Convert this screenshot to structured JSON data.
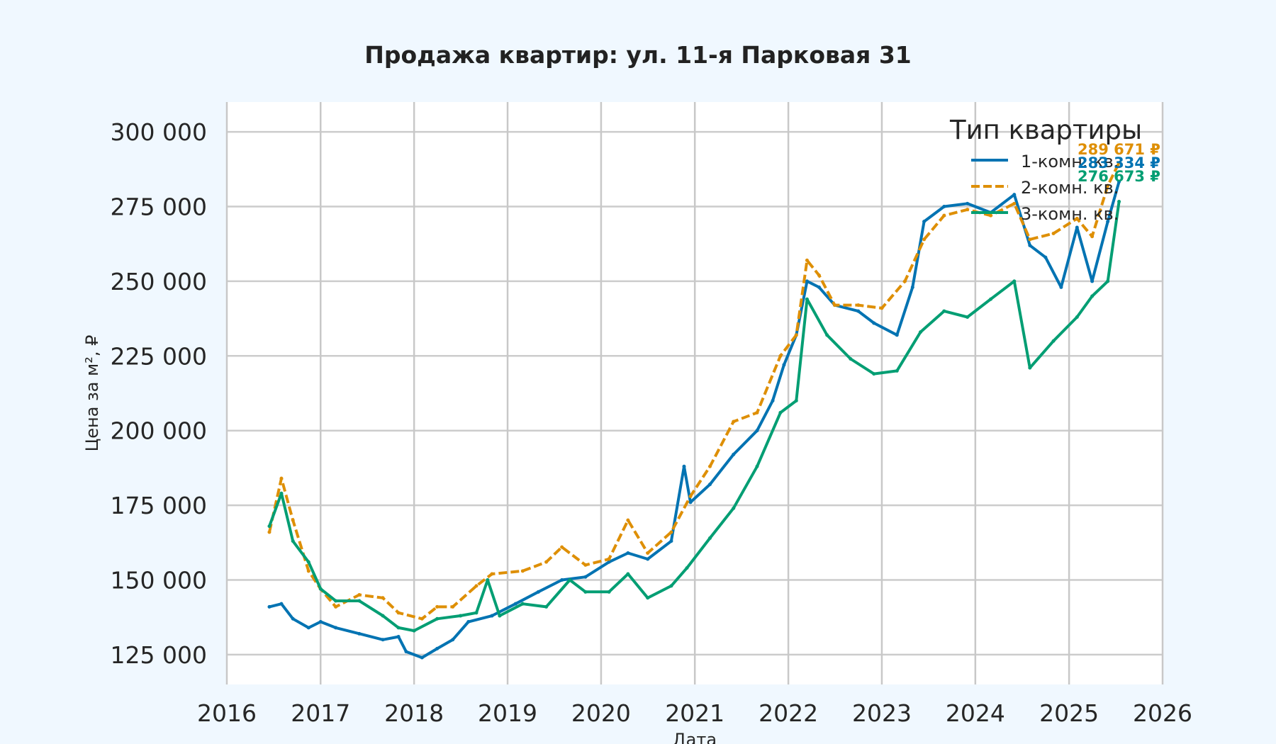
{
  "chart_data": {
    "type": "line",
    "title": "Продажа квартир: ул. 11-я Парковая 31",
    "xlabel": "Дата",
    "ylabel": "Цена за м², ₽",
    "xlim": [
      "2016-01-01",
      "2026-01-01"
    ],
    "ylim": [
      115000,
      310000
    ],
    "yticks": [
      "125 000",
      "150 000",
      "175 000",
      "200 000",
      "225 000",
      "250 000",
      "275 000",
      "300 000"
    ],
    "xticks": [
      "2016",
      "2017",
      "2018",
      "2019",
      "2020",
      "2021",
      "2022",
      "2023",
      "2024",
      "2025",
      "2026"
    ],
    "grid": true,
    "legend": {
      "title": "Тип квартиры",
      "placement": "top-right"
    },
    "series": [
      {
        "name": "1-комн. кв.",
        "color": "#0173b2",
        "dash": "solid",
        "last_label": "283 334 ₽",
        "points": [
          [
            "2016-06-15",
            141000
          ],
          [
            "2016-08-01",
            142000
          ],
          [
            "2016-09-15",
            137000
          ],
          [
            "2016-11-15",
            134000
          ],
          [
            "2017-01-01",
            136000
          ],
          [
            "2017-03-01",
            134000
          ],
          [
            "2017-06-01",
            132000
          ],
          [
            "2017-09-01",
            130000
          ],
          [
            "2017-11-01",
            131000
          ],
          [
            "2017-12-01",
            126000
          ],
          [
            "2018-02-01",
            124000
          ],
          [
            "2018-04-01",
            127000
          ],
          [
            "2018-06-01",
            130000
          ],
          [
            "2018-08-01",
            136000
          ],
          [
            "2018-11-01",
            138000
          ],
          [
            "2019-02-01",
            142000
          ],
          [
            "2019-05-01",
            146000
          ],
          [
            "2019-08-01",
            150000
          ],
          [
            "2019-11-01",
            151000
          ],
          [
            "2020-02-01",
            156000
          ],
          [
            "2020-04-15",
            159000
          ],
          [
            "2020-07-01",
            157000
          ],
          [
            "2020-10-01",
            163000
          ],
          [
            "2020-11-20",
            188000
          ],
          [
            "2020-12-15",
            176000
          ],
          [
            "2021-03-01",
            182000
          ],
          [
            "2021-06-01",
            192000
          ],
          [
            "2021-09-01",
            200000
          ],
          [
            "2021-11-01",
            210000
          ],
          [
            "2021-12-15",
            222000
          ],
          [
            "2022-02-01",
            232000
          ],
          [
            "2022-03-15",
            250000
          ],
          [
            "2022-05-01",
            248000
          ],
          [
            "2022-07-01",
            242000
          ],
          [
            "2022-10-01",
            240000
          ],
          [
            "2022-12-01",
            236000
          ],
          [
            "2023-03-01",
            232000
          ],
          [
            "2023-05-01",
            248000
          ],
          [
            "2023-06-15",
            270000
          ],
          [
            "2023-09-01",
            275000
          ],
          [
            "2023-12-01",
            276000
          ],
          [
            "2024-03-01",
            273000
          ],
          [
            "2024-06-01",
            279000
          ],
          [
            "2024-08-01",
            262000
          ],
          [
            "2024-10-01",
            258000
          ],
          [
            "2024-12-01",
            248000
          ],
          [
            "2025-02-01",
            268000
          ],
          [
            "2025-04-01",
            250000
          ],
          [
            "2025-06-01",
            270000
          ],
          [
            "2025-07-15",
            283334
          ]
        ]
      },
      {
        "name": "2-комн. кв.",
        "color": "#de8f05",
        "dash": "dashed",
        "last_label": "289 671 ₽",
        "points": [
          [
            "2016-06-15",
            166000
          ],
          [
            "2016-08-01",
            184000
          ],
          [
            "2016-09-15",
            170000
          ],
          [
            "2016-11-15",
            153000
          ],
          [
            "2017-01-01",
            147000
          ],
          [
            "2017-03-01",
            141000
          ],
          [
            "2017-06-01",
            145000
          ],
          [
            "2017-09-01",
            144000
          ],
          [
            "2017-11-01",
            139000
          ],
          [
            "2018-02-01",
            137000
          ],
          [
            "2018-04-01",
            141000
          ],
          [
            "2018-06-01",
            141000
          ],
          [
            "2018-09-01",
            148000
          ],
          [
            "2018-11-01",
            152000
          ],
          [
            "2019-03-01",
            153000
          ],
          [
            "2019-06-01",
            156000
          ],
          [
            "2019-08-01",
            161000
          ],
          [
            "2019-11-01",
            155000
          ],
          [
            "2020-02-01",
            157000
          ],
          [
            "2020-04-15",
            170000
          ],
          [
            "2020-07-01",
            159000
          ],
          [
            "2020-10-01",
            166000
          ],
          [
            "2020-12-15",
            178000
          ],
          [
            "2021-03-01",
            188000
          ],
          [
            "2021-06-01",
            203000
          ],
          [
            "2021-09-01",
            206000
          ],
          [
            "2021-12-01",
            225000
          ],
          [
            "2022-02-01",
            232000
          ],
          [
            "2022-03-15",
            257000
          ],
          [
            "2022-05-01",
            252000
          ],
          [
            "2022-07-01",
            242000
          ],
          [
            "2022-10-01",
            242000
          ],
          [
            "2023-01-01",
            241000
          ],
          [
            "2023-04-01",
            250000
          ],
          [
            "2023-06-15",
            264000
          ],
          [
            "2023-09-01",
            272000
          ],
          [
            "2023-12-01",
            274000
          ],
          [
            "2024-03-01",
            272000
          ],
          [
            "2024-06-01",
            276000
          ],
          [
            "2024-08-01",
            264000
          ],
          [
            "2024-11-01",
            266000
          ],
          [
            "2025-02-01",
            271000
          ],
          [
            "2025-04-01",
            265000
          ],
          [
            "2025-06-01",
            282000
          ],
          [
            "2025-07-15",
            289671
          ]
        ]
      },
      {
        "name": "3-комн. кв.",
        "color": "#029e73",
        "dash": "solid",
        "last_label": "276 673 ₽",
        "points": [
          [
            "2016-06-15",
            168000
          ],
          [
            "2016-08-01",
            179000
          ],
          [
            "2016-09-15",
            163000
          ],
          [
            "2016-11-15",
            156000
          ],
          [
            "2017-01-01",
            147000
          ],
          [
            "2017-03-01",
            143000
          ],
          [
            "2017-06-01",
            143000
          ],
          [
            "2017-09-01",
            138000
          ],
          [
            "2017-11-01",
            134000
          ],
          [
            "2018-01-01",
            133000
          ],
          [
            "2018-04-01",
            137000
          ],
          [
            "2018-07-01",
            138000
          ],
          [
            "2018-09-01",
            139000
          ],
          [
            "2018-10-15",
            150000
          ],
          [
            "2018-12-01",
            138000
          ],
          [
            "2019-03-01",
            142000
          ],
          [
            "2019-06-01",
            141000
          ],
          [
            "2019-09-01",
            150000
          ],
          [
            "2019-11-01",
            146000
          ],
          [
            "2020-02-01",
            146000
          ],
          [
            "2020-04-15",
            152000
          ],
          [
            "2020-07-01",
            144000
          ],
          [
            "2020-10-01",
            148000
          ],
          [
            "2020-12-01",
            154000
          ],
          [
            "2021-03-01",
            164000
          ],
          [
            "2021-06-01",
            174000
          ],
          [
            "2021-09-01",
            188000
          ],
          [
            "2021-12-01",
            206000
          ],
          [
            "2022-02-01",
            210000
          ],
          [
            "2022-03-15",
            244000
          ],
          [
            "2022-06-01",
            232000
          ],
          [
            "2022-09-01",
            224000
          ],
          [
            "2022-12-01",
            219000
          ],
          [
            "2023-03-01",
            220000
          ],
          [
            "2023-06-01",
            233000
          ],
          [
            "2023-09-01",
            240000
          ],
          [
            "2023-12-01",
            238000
          ],
          [
            "2024-03-01",
            244000
          ],
          [
            "2024-06-01",
            250000
          ],
          [
            "2024-08-01",
            221000
          ],
          [
            "2024-11-01",
            230000
          ],
          [
            "2025-02-01",
            238000
          ],
          [
            "2025-04-01",
            245000
          ],
          [
            "2025-06-01",
            250000
          ],
          [
            "2025-07-15",
            276673
          ]
        ]
      }
    ]
  }
}
